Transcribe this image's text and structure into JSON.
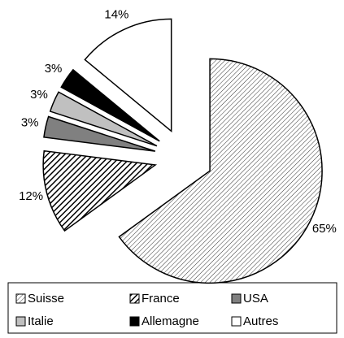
{
  "chart_data": {
    "type": "pie",
    "categories": [
      "Suisse",
      "France",
      "USA",
      "Italie",
      "Allemagne",
      "Autres"
    ],
    "values": [
      65,
      12,
      3,
      3,
      3,
      14
    ],
    "value_labels": [
      "65%",
      "12%",
      "3%",
      "3%",
      "3%",
      "14%"
    ],
    "colors": [
      "#ffffff",
      "#ffffff",
      "#808080",
      "#c0c0c0",
      "#000000",
      "#ffffff"
    ],
    "exploded": true,
    "legend": "bottom"
  }
}
